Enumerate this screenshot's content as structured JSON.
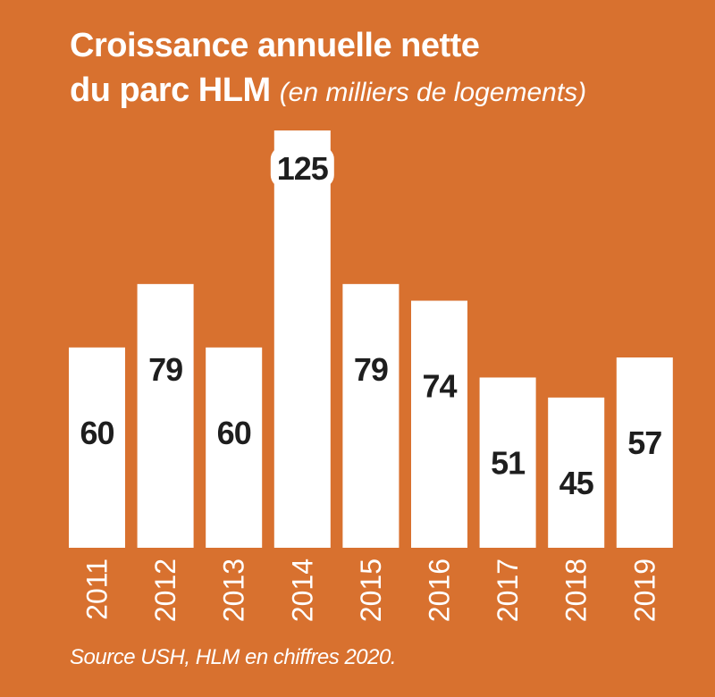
{
  "title": {
    "line1": "Croissance annuelle nette",
    "line2": "du parc HLM",
    "subtitle": "(en milliers de logements)"
  },
  "source": "Source USH, HLM en chiffres 2020.",
  "colors": {
    "background": "#D8712F",
    "bar": "#FFFFFF",
    "value_inside": "#1E1E1E",
    "value_outside": "#FFFFFF",
    "year_label": "#FFFFFF"
  },
  "chart_data": {
    "type": "bar",
    "categories": [
      "2011",
      "2012",
      "2013",
      "2014",
      "2015",
      "2016",
      "2017",
      "2018",
      "2019"
    ],
    "values": [
      60,
      79,
      60,
      125,
      79,
      74,
      51,
      45,
      57
    ],
    "value_labels": [
      "60",
      "79",
      "60",
      "125",
      "79",
      "74",
      "51",
      "45",
      "57"
    ],
    "ylim": [
      0,
      125
    ],
    "grid": false,
    "legend": "none"
  }
}
